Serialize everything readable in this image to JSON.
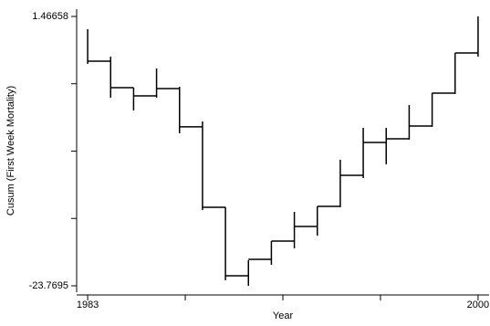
{
  "chart_data": {
    "type": "cusum-step",
    "x_label": "Year",
    "y_label": "Cusum (First Week Mortality)",
    "x": [
      1983,
      1984,
      1985,
      1986,
      1987,
      1988,
      1989,
      1990,
      1991,
      1992,
      1993,
      1994,
      1995,
      1996,
      1997,
      1998,
      1999,
      2000
    ],
    "values": [
      -2.73,
      -5.21,
      -5.98,
      -5.29,
      -8.88,
      -16.41,
      -22.83,
      -21.29,
      -19.58,
      -18.21,
      -16.33,
      -13.42,
      -10.34,
      -10.0,
      -8.8,
      -5.72,
      -1.96,
      null
    ],
    "low": [
      -2.98,
      -6.15,
      -7.34,
      -6.15,
      -9.48,
      -16.67,
      -23.25,
      -23.77,
      -21.8,
      -20.26,
      -19.07,
      -16.41,
      -13.68,
      -12.39,
      -10.08,
      -8.88,
      -5.8,
      -2.3
    ],
    "high": [
      0.27,
      -2.3,
      -5.21,
      -3.41,
      -5.12,
      -8.37,
      -16.41,
      -21.37,
      -19.58,
      -16.84,
      -16.33,
      -11.96,
      -8.97,
      -8.97,
      -6.83,
      -5.72,
      -1.96,
      1.47
    ],
    "color": "#000000",
    "xlim": [
      1982.52,
      2000.48
    ],
    "ylim": [
      -24.37,
      2.15
    ],
    "xticks": [
      1983,
      2000
    ],
    "xticks_minor": [
      1987.25,
      1991.5,
      1995.75
    ],
    "yticks": [
      1.46658,
      -23.7695
    ],
    "yticks_minor": [
      -4.84,
      -11.15,
      -17.46
    ]
  }
}
